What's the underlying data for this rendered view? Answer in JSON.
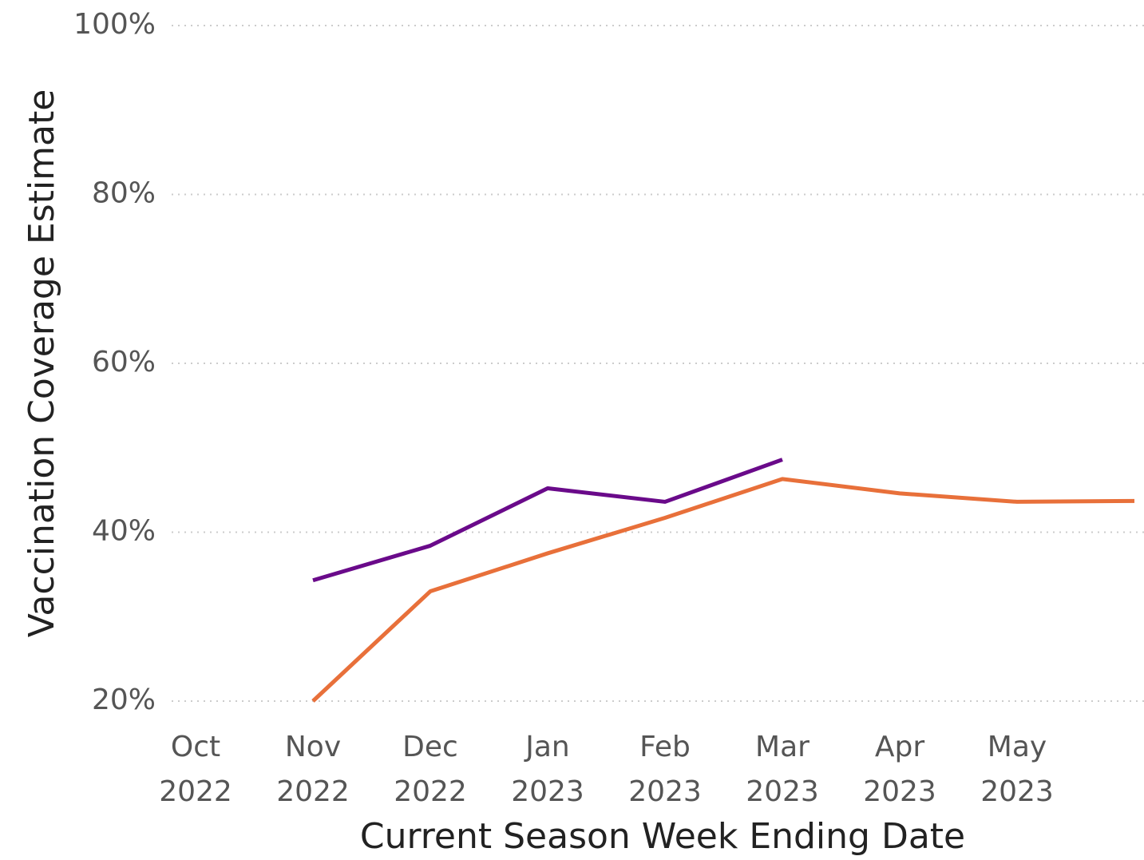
{
  "chart_data": {
    "type": "line",
    "x_label": "Current Season Week Ending Date",
    "y_label": "Vaccination Coverage Estimate",
    "categories": [
      "Oct 2022",
      "Nov 2022",
      "Dec 2022",
      "Jan 2023",
      "Feb 2023",
      "Mar 2023",
      "Apr 2023",
      "May 2023",
      null
    ],
    "series": [
      {
        "color": "#6a0a8a",
        "values": [
          null,
          34.3,
          38.4,
          45.2,
          43.6,
          48.6,
          null,
          null,
          null
        ]
      },
      {
        "color": "#e8703a",
        "values": [
          null,
          20,
          33.0,
          37.5,
          41.7,
          46.3,
          44.6,
          43.6,
          43.7
        ]
      }
    ],
    "ylim": [
      20,
      100
    ],
    "yticks": [
      {
        "value": 20,
        "label": "20%"
      },
      {
        "value": 40,
        "label": "40%"
      },
      {
        "value": 60,
        "label": "60%"
      },
      {
        "value": 80,
        "label": "80%"
      },
      {
        "value": 100,
        "label": "100%"
      }
    ],
    "grid": true
  }
}
